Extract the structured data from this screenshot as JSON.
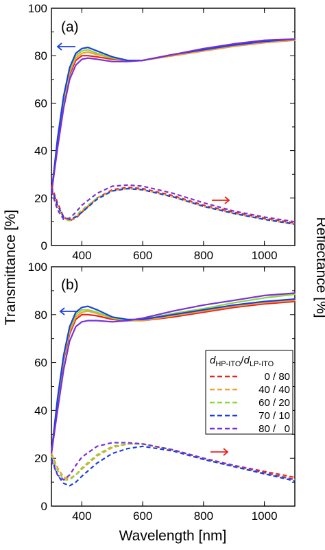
{
  "figure": {
    "ylabel_left": "Transmittance [%]",
    "ylabel_right": "Reflectance [%]",
    "xlabel": "Wavelength [nm]"
  },
  "legend": {
    "title_main": "d",
    "title_sub1": "HP-ITO",
    "title_slash": "/",
    "title_main2": "d",
    "title_sub2": "LP-ITO",
    "entries": [
      "0 / 80",
      "40 / 40",
      "60 / 20",
      "70 / 10",
      "80 /   0"
    ],
    "placement": "right, panel b"
  },
  "colors": {
    "0/80": "#e8231d",
    "40/40": "#f0a030",
    "60/20": "#8cd63c",
    "70/10": "#1a3fe0",
    "80/0": "#7b2fd6",
    "arrow_left": "#1a3fe0",
    "arrow_right": "#e8231d"
  },
  "chart_data": [
    {
      "type": "line",
      "panel_label": "(a)",
      "xlim": [
        300,
        1100
      ],
      "ylim": [
        0,
        100
      ],
      "x_ticks": [
        "400",
        "600",
        "800",
        "1000"
      ],
      "y_ticks": [
        "0",
        "20",
        "40",
        "60",
        "80",
        "100"
      ],
      "grid": false,
      "annotations": [
        "left arrow at T≈84 (transmittance → left axis)",
        "right arrow at R≈19 (reflectance → right axis)"
      ],
      "series": [
        {
          "key": "0/80",
          "kind": "transmittance",
          "x": [
            300,
            320,
            340,
            360,
            380,
            400,
            420,
            450,
            500,
            550,
            600,
            700,
            800,
            900,
            1000,
            1100
          ],
          "y": [
            22,
            42,
            60,
            72,
            78,
            80,
            80,
            79.5,
            78.5,
            78,
            78,
            80,
            82,
            84,
            85.5,
            86.5
          ]
        },
        {
          "key": "40/40",
          "kind": "transmittance",
          "x": [
            300,
            320,
            340,
            360,
            380,
            400,
            420,
            450,
            500,
            550,
            600,
            700,
            800,
            900,
            1000,
            1100
          ],
          "y": [
            22,
            43,
            61,
            73,
            79,
            81,
            81.5,
            80.5,
            79,
            78,
            78,
            80,
            82,
            84,
            85.5,
            86.5
          ]
        },
        {
          "key": "60/20",
          "kind": "transmittance",
          "x": [
            300,
            320,
            340,
            360,
            380,
            400,
            420,
            450,
            500,
            550,
            600,
            700,
            800,
            900,
            1000,
            1100
          ],
          "y": [
            22,
            44,
            62,
            74,
            80,
            82,
            82.5,
            81,
            79,
            78,
            78,
            80.5,
            82.5,
            84.5,
            86,
            87
          ]
        },
        {
          "key": "70/10",
          "kind": "transmittance",
          "x": [
            300,
            320,
            340,
            360,
            380,
            400,
            420,
            450,
            500,
            550,
            600,
            700,
            800,
            900,
            1000,
            1100
          ],
          "y": [
            22,
            45,
            63,
            75,
            81,
            83,
            83.5,
            82,
            79.5,
            78,
            78,
            80.5,
            82.5,
            84.5,
            86,
            87
          ]
        },
        {
          "key": "80/0",
          "kind": "transmittance",
          "x": [
            300,
            320,
            340,
            360,
            380,
            400,
            420,
            450,
            500,
            550,
            600,
            700,
            800,
            900,
            1000,
            1100
          ],
          "y": [
            22,
            41,
            58,
            70,
            76,
            78.5,
            79,
            78.5,
            77.5,
            77.5,
            78,
            80.5,
            83,
            85,
            86.5,
            87
          ]
        },
        {
          "key": "0/80",
          "kind": "reflectance",
          "x": [
            300,
            320,
            340,
            360,
            380,
            400,
            450,
            500,
            550,
            600,
            700,
            800,
            900,
            1000,
            1100
          ],
          "y": [
            25,
            18,
            12,
            10.5,
            11.5,
            14,
            20,
            23.5,
            24.5,
            24,
            21,
            17,
            14,
            11.5,
            9.5
          ]
        },
        {
          "key": "40/40",
          "kind": "reflectance",
          "x": [
            300,
            320,
            340,
            360,
            380,
            400,
            450,
            500,
            550,
            600,
            700,
            800,
            900,
            1000,
            1100
          ],
          "y": [
            24,
            17,
            11.5,
            10.5,
            12,
            14.5,
            20,
            23,
            24,
            23.5,
            20.5,
            16.5,
            13.5,
            11,
            9
          ]
        },
        {
          "key": "60/20",
          "kind": "reflectance",
          "x": [
            300,
            320,
            340,
            360,
            380,
            400,
            450,
            500,
            550,
            600,
            700,
            800,
            900,
            1000,
            1100
          ],
          "y": [
            23,
            16,
            11,
            10.5,
            12.5,
            15,
            20,
            23,
            24,
            23.5,
            20.5,
            16.5,
            13.5,
            11,
            9
          ]
        },
        {
          "key": "70/10",
          "kind": "reflectance",
          "x": [
            300,
            320,
            340,
            360,
            380,
            400,
            450,
            500,
            550,
            600,
            700,
            800,
            900,
            1000,
            1100
          ],
          "y": [
            24,
            17,
            12,
            11,
            12,
            14,
            19.5,
            23,
            24,
            23.5,
            20.5,
            16.5,
            13.5,
            11,
            9
          ]
        },
        {
          "key": "80/0",
          "kind": "reflectance",
          "x": [
            300,
            320,
            340,
            360,
            380,
            400,
            450,
            500,
            550,
            600,
            700,
            800,
            900,
            1000,
            1100
          ],
          "y": [
            23,
            15,
            11,
            11.5,
            14,
            17,
            22,
            25,
            25.5,
            25,
            22,
            18,
            14.5,
            12,
            10
          ]
        }
      ]
    },
    {
      "type": "line",
      "panel_label": "(b)",
      "xlim": [
        300,
        1100
      ],
      "ylim": [
        0,
        100
      ],
      "x_ticks": [
        "400",
        "600",
        "800",
        "1000"
      ],
      "y_ticks": [
        "0",
        "20",
        "40",
        "60",
        "80",
        "100"
      ],
      "grid": false,
      "annotations": [
        "left arrow at T≈82 (transmittance → left axis)",
        "right arrow at R≈20 (reflectance → right axis)"
      ],
      "series": [
        {
          "key": "0/80",
          "kind": "transmittance",
          "x": [
            300,
            320,
            340,
            360,
            380,
            400,
            420,
            450,
            500,
            550,
            600,
            700,
            800,
            900,
            1000,
            1100
          ],
          "y": [
            22,
            43,
            61,
            72,
            78,
            80,
            80,
            79.5,
            78,
            77.5,
            77.5,
            79,
            81,
            83,
            84.5,
            85.5
          ]
        },
        {
          "key": "40/40",
          "kind": "transmittance",
          "x": [
            300,
            320,
            340,
            360,
            380,
            400,
            420,
            450,
            500,
            550,
            600,
            700,
            800,
            900,
            1000,
            1100
          ],
          "y": [
            22,
            44,
            62,
            73,
            79,
            81,
            81.5,
            80.5,
            78.5,
            77.5,
            77.5,
            79.5,
            81.5,
            83.5,
            85,
            86
          ]
        },
        {
          "key": "60/20",
          "kind": "transmittance",
          "x": [
            300,
            320,
            340,
            360,
            380,
            400,
            420,
            450,
            500,
            550,
            600,
            700,
            800,
            900,
            1000,
            1100
          ],
          "y": [
            22,
            44,
            62,
            74,
            80,
            82,
            82,
            81,
            78.5,
            77.5,
            78,
            80.5,
            82.5,
            85,
            87,
            88.5
          ]
        },
        {
          "key": "70/10",
          "kind": "transmittance",
          "x": [
            300,
            320,
            340,
            360,
            380,
            400,
            420,
            450,
            500,
            550,
            600,
            700,
            800,
            900,
            1000,
            1100
          ],
          "y": [
            22,
            45,
            63,
            75,
            81,
            83,
            83.5,
            82,
            79,
            78,
            78,
            80,
            82,
            84,
            85.5,
            86.5
          ]
        },
        {
          "key": "80/0",
          "kind": "transmittance",
          "x": [
            300,
            320,
            340,
            360,
            380,
            400,
            420,
            450,
            500,
            550,
            600,
            700,
            800,
            900,
            1000,
            1100
          ],
          "y": [
            22,
            40,
            57,
            69,
            75,
            77,
            77.5,
            77.5,
            77,
            77.5,
            78.5,
            81.5,
            84,
            86,
            88,
            89
          ]
        },
        {
          "key": "0/80",
          "kind": "reflectance",
          "x": [
            300,
            320,
            340,
            360,
            380,
            400,
            450,
            500,
            550,
            600,
            700,
            800,
            900,
            1000,
            1100
          ],
          "y": [
            22,
            16,
            12,
            11.5,
            13,
            15.5,
            21,
            24.5,
            26,
            26,
            23.5,
            20,
            17,
            14.5,
            12
          ]
        },
        {
          "key": "40/40",
          "kind": "reflectance",
          "x": [
            300,
            320,
            340,
            360,
            380,
            400,
            450,
            500,
            550,
            600,
            700,
            800,
            900,
            1000,
            1100
          ],
          "y": [
            22,
            16,
            12,
            11.5,
            13,
            15.5,
            21,
            24.5,
            26,
            26,
            23.5,
            20,
            17,
            14,
            11.5
          ]
        },
        {
          "key": "60/20",
          "kind": "reflectance",
          "x": [
            300,
            320,
            340,
            360,
            380,
            400,
            450,
            500,
            550,
            600,
            700,
            800,
            900,
            1000,
            1100
          ],
          "y": [
            21,
            15,
            11,
            11,
            13,
            16,
            21.5,
            25,
            26,
            26,
            23.5,
            19.5,
            16.5,
            13.5,
            11
          ]
        },
        {
          "key": "70/10",
          "kind": "reflectance",
          "x": [
            300,
            320,
            340,
            360,
            380,
            400,
            450,
            500,
            550,
            600,
            700,
            800,
            900,
            1000,
            1100
          ],
          "y": [
            20,
            13,
            9.5,
            8.5,
            10,
            12.5,
            18,
            22,
            24,
            25,
            23,
            19.5,
            16.5,
            13.5,
            10.5
          ]
        },
        {
          "key": "80/0",
          "kind": "reflectance",
          "x": [
            300,
            320,
            340,
            360,
            380,
            400,
            450,
            500,
            550,
            600,
            700,
            800,
            900,
            1000,
            1100
          ],
          "y": [
            19,
            13,
            11,
            13,
            17,
            20.5,
            25,
            26.5,
            26.5,
            26,
            23.5,
            20,
            17,
            14,
            11
          ]
        }
      ]
    }
  ]
}
